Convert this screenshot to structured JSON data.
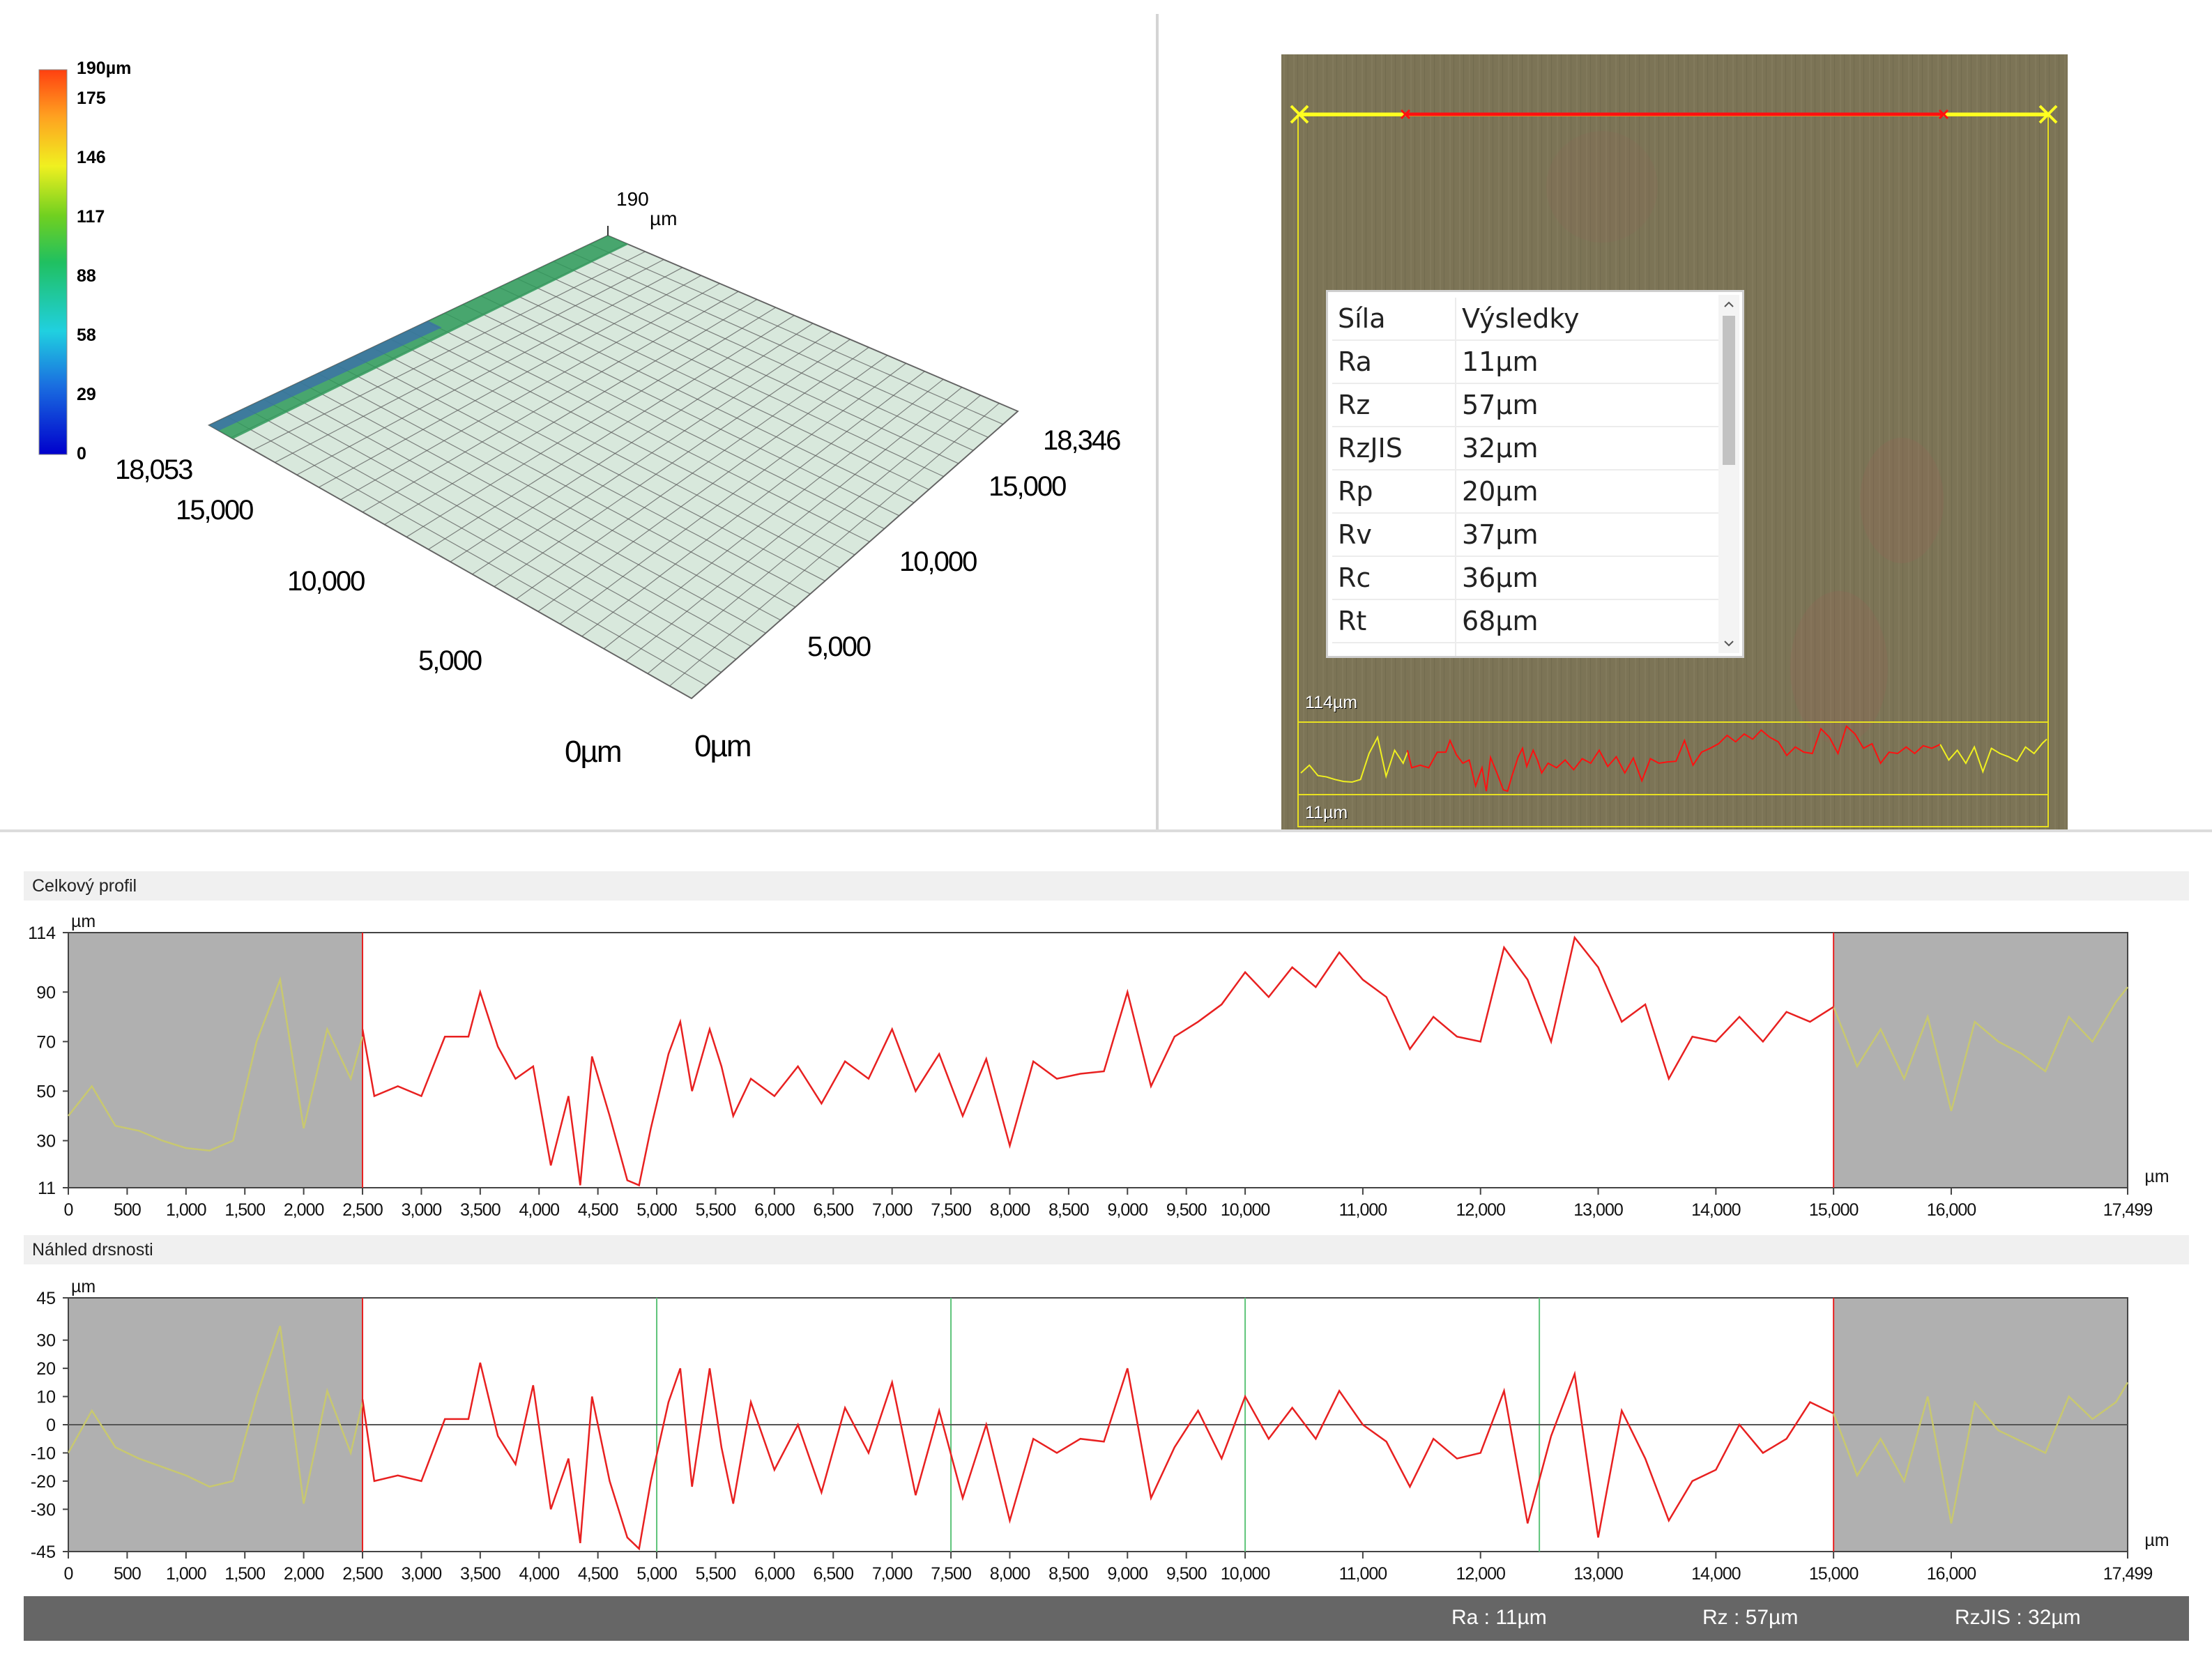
{
  "colorbar": {
    "max_label": "190µm",
    "ticks": [
      "175",
      "146",
      "117",
      "88",
      "58",
      "29",
      "0"
    ]
  },
  "view3d": {
    "z_label": "190",
    "z_unit": "µm",
    "left_axis": [
      "18,053",
      "15,000",
      "10,000",
      "5,000",
      "0µm"
    ],
    "right_axis": [
      "18,346",
      "15,000",
      "10,000",
      "5,000",
      "0µm"
    ]
  },
  "image_panel": {
    "results": {
      "headers": [
        "Síla",
        "Výsledky"
      ],
      "rows": [
        [
          "Ra",
          "11µm"
        ],
        [
          "Rz",
          "57µm"
        ],
        [
          "RzJIS",
          "32µm"
        ],
        [
          "Rp",
          "20µm"
        ],
        [
          "Rv",
          "37µm"
        ],
        [
          "Rc",
          "36µm"
        ],
        [
          "Rt",
          "68µm"
        ]
      ]
    },
    "profile_top_label": "114µm",
    "profile_bottom_label": "11µm"
  },
  "chart_data": [
    {
      "type": "line",
      "title": "Celkový profil",
      "ylabel": "µm",
      "xlabel": "µm",
      "xlim": [
        0,
        17499
      ],
      "ylim": [
        11,
        114
      ],
      "y_ticks": [
        "114",
        "90",
        "70",
        "50",
        "30",
        "11"
      ],
      "x_ticks": [
        "0",
        "500",
        "1,000",
        "1,500",
        "2,000",
        "2,500",
        "3,000",
        "3,500",
        "4,000",
        "4,500",
        "5,000",
        "5,500",
        "6,000",
        "6,500",
        "7,000",
        "7,500",
        "8,000",
        "8,500",
        "9,000",
        "9,500",
        "10,000",
        "11,000",
        "12,000",
        "13,000",
        "14,000",
        "15,000",
        "16,000",
        "17,499"
      ],
      "evaluation_range": [
        2500,
        15000
      ],
      "series": [
        {
          "color": "#e82020",
          "x": [
            2500,
            2600,
            2800,
            3000,
            3200,
            3400,
            3500,
            3650,
            3800,
            3950,
            4100,
            4250,
            4350,
            4450,
            4600,
            4750,
            4850,
            4950,
            5100,
            5200,
            5300,
            5450,
            5550,
            5650,
            5800,
            6000,
            6200,
            6400,
            6600,
            6800,
            7000,
            7200,
            7400,
            7600,
            7800,
            8000,
            8200,
            8400,
            8600,
            8800,
            9000,
            9200,
            9400,
            9600,
            9800,
            10000,
            10200,
            10400,
            10600,
            10800,
            11000,
            11200,
            11400,
            11600,
            11800,
            12000,
            12200,
            12400,
            12600,
            12800,
            13000,
            13200,
            13400,
            13600,
            13800,
            14000,
            14200,
            14400,
            14600,
            14800,
            15000
          ],
          "y": [
            75,
            48,
            52,
            48,
            72,
            72,
            90,
            68,
            55,
            60,
            20,
            48,
            12,
            64,
            40,
            14,
            12,
            35,
            65,
            78,
            50,
            75,
            60,
            40,
            55,
            48,
            60,
            45,
            62,
            55,
            75,
            50,
            65,
            40,
            63,
            28,
            62,
            55,
            57,
            58,
            90,
            52,
            72,
            78,
            85,
            98,
            88,
            100,
            92,
            106,
            95,
            88,
            67,
            80,
            72,
            70,
            108,
            95,
            70,
            112,
            100,
            78,
            85,
            55,
            72,
            70,
            80,
            70,
            82,
            78,
            84
          ]
        },
        {
          "color": "#c8c870",
          "x": [
            0,
            200,
            400,
            600,
            800,
            1000,
            1200,
            1400,
            1600,
            1800,
            2000,
            2200,
            2400,
            2500,
            15000,
            15200,
            15400,
            15600,
            15800,
            16000,
            16200,
            16400,
            16600,
            16800,
            17000,
            17200,
            17400,
            17499
          ],
          "y": [
            40,
            52,
            36,
            34,
            30,
            27,
            26,
            30,
            70,
            95,
            35,
            75,
            55,
            72,
            84,
            60,
            75,
            55,
            80,
            42,
            78,
            70,
            65,
            58,
            80,
            70,
            86,
            92
          ]
        }
      ]
    },
    {
      "type": "line",
      "title": "Náhled drsnosti",
      "ylabel": "µm",
      "xlabel": "µm",
      "xlim": [
        0,
        17499
      ],
      "ylim": [
        -45,
        45
      ],
      "y_ticks": [
        "45",
        "30",
        "20",
        "10",
        "0",
        "-10",
        "-20",
        "-30",
        "-45"
      ],
      "x_ticks": [
        "0",
        "500",
        "1,000",
        "1,500",
        "2,000",
        "2,500",
        "3,000",
        "3,500",
        "4,000",
        "4,500",
        "5,000",
        "5,500",
        "6,000",
        "6,500",
        "7,000",
        "7,500",
        "8,000",
        "8,500",
        "9,000",
        "9,500",
        "10,000",
        "11,000",
        "12,000",
        "13,000",
        "14,000",
        "15,000",
        "16,000",
        "17,499"
      ],
      "evaluation_range": [
        2500,
        15000
      ],
      "cutoff_lines": [
        5000,
        7500,
        10000,
        12500
      ],
      "series": [
        {
          "color": "#e82020",
          "x": [
            2500,
            2600,
            2800,
            3000,
            3200,
            3400,
            3500,
            3650,
            3800,
            3950,
            4100,
            4250,
            4350,
            4450,
            4600,
            4750,
            4850,
            4950,
            5100,
            5200,
            5300,
            5450,
            5550,
            5650,
            5800,
            6000,
            6200,
            6400,
            6600,
            6800,
            7000,
            7200,
            7400,
            7600,
            7800,
            8000,
            8200,
            8400,
            8600,
            8800,
            9000,
            9200,
            9400,
            9600,
            9800,
            10000,
            10200,
            10400,
            10600,
            10800,
            11000,
            11200,
            11400,
            11600,
            11800,
            12000,
            12200,
            12400,
            12600,
            12800,
            13000,
            13200,
            13400,
            13600,
            13800,
            14000,
            14200,
            14400,
            14600,
            14800,
            15000
          ],
          "y": [
            9,
            -20,
            -18,
            -20,
            2,
            2,
            22,
            -4,
            -14,
            14,
            -30,
            -12,
            -42,
            10,
            -20,
            -40,
            -44,
            -20,
            8,
            20,
            -22,
            20,
            -8,
            -28,
            8,
            -16,
            0,
            -24,
            6,
            -10,
            15,
            -25,
            5,
            -26,
            0,
            -34,
            -5,
            -10,
            -5,
            -6,
            20,
            -26,
            -8,
            5,
            -12,
            10,
            -5,
            6,
            -5,
            12,
            0,
            -6,
            -22,
            -5,
            -12,
            -10,
            12,
            -35,
            -4,
            18,
            -40,
            5,
            -12,
            -34,
            -20,
            -16,
            0,
            -10,
            -5,
            8,
            4
          ]
        },
        {
          "color": "#c8c870",
          "x": [
            0,
            200,
            400,
            600,
            800,
            1000,
            1200,
            1400,
            1600,
            1800,
            2000,
            2200,
            2400,
            2500,
            15000,
            15200,
            15400,
            15600,
            15800,
            16000,
            16200,
            16400,
            16600,
            16800,
            17000,
            17200,
            17400,
            17499
          ],
          "y": [
            -10,
            5,
            -8,
            -12,
            -15,
            -18,
            -22,
            -20,
            10,
            35,
            -28,
            12,
            -10,
            8,
            4,
            -18,
            -5,
            -20,
            10,
            -35,
            8,
            -2,
            -6,
            -10,
            10,
            2,
            8,
            15
          ]
        }
      ]
    }
  ],
  "status_bar": {
    "ra": "Ra : 11µm",
    "rz": "Rz : 57µm",
    "rzjis": "RzJIS : 32µm"
  },
  "colors": {
    "profile_line": "#e82020",
    "excluded_region": "#b0b0b0",
    "excluded_line": "#c8c870",
    "cutoff_line": "#5ec47a",
    "status_bar": "#666666"
  }
}
